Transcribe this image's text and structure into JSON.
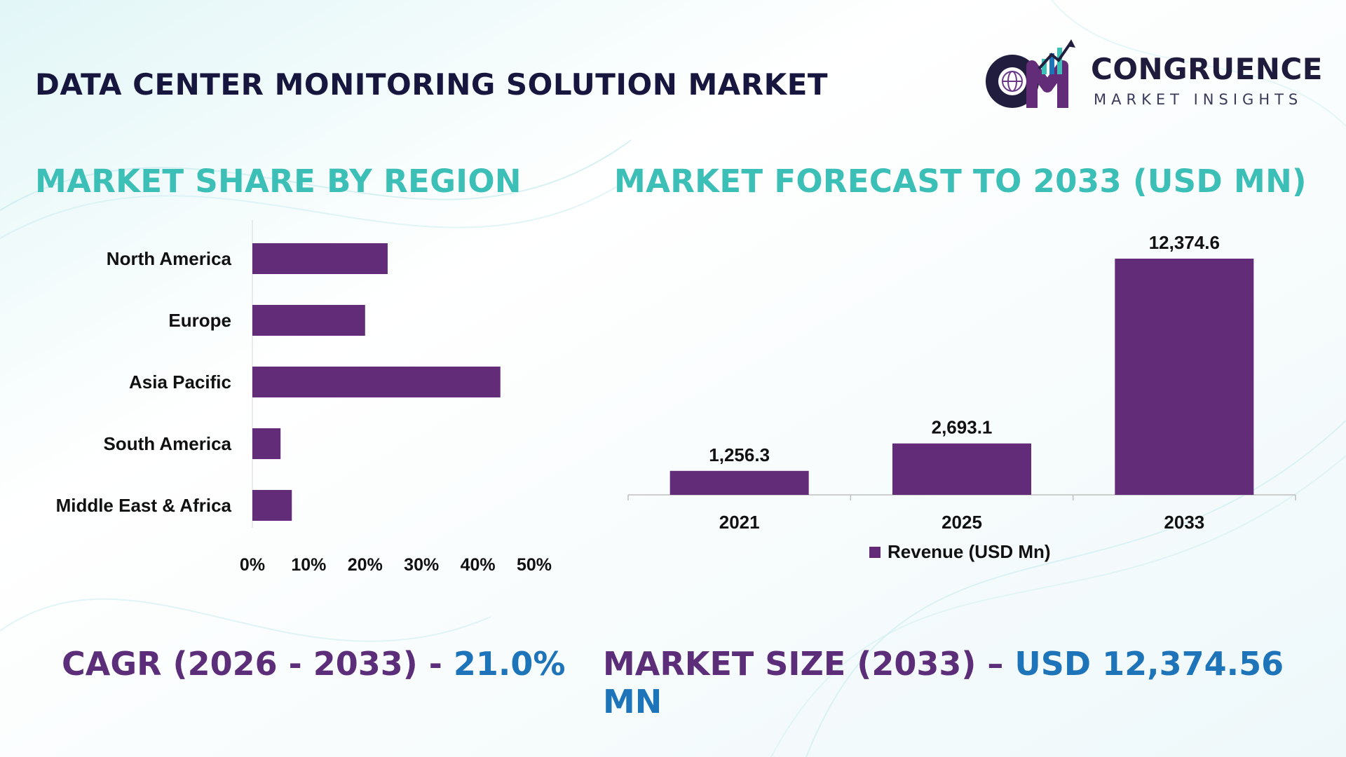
{
  "header": {
    "title": "DATA CENTER MONITORING SOLUTION MARKET"
  },
  "logo": {
    "letters": "CM",
    "name": "CONGRUENCE",
    "tagline": "MARKET INSIGHTS",
    "icon": "globe-bar-chart-icon"
  },
  "sections": {
    "region_title": "MARKET SHARE BY REGION",
    "forecast_title": "MARKET FORECAST TO 2033 (USD MN)"
  },
  "colors": {
    "bar": "#632c78",
    "teal": "#3bbfb6",
    "title_dark": "#16163f",
    "accent_blue": "#1d74b8",
    "footer_purple": "#5c2d79"
  },
  "chart_data": [
    {
      "type": "bar",
      "orientation": "horizontal",
      "title": "MARKET SHARE BY REGION",
      "categories": [
        "North America",
        "Europe",
        "Asia Pacific",
        "South America",
        "Middle East & Africa"
      ],
      "values": [
        24,
        20,
        44,
        5,
        7
      ],
      "unit": "%",
      "xlim": [
        0,
        50
      ],
      "xticks": [
        "0%",
        "10%",
        "20%",
        "30%",
        "40%",
        "50%"
      ],
      "grid": false
    },
    {
      "type": "bar",
      "orientation": "vertical",
      "title": "MARKET FORECAST TO 2033 (USD MN)",
      "categories": [
        "2021",
        "2025",
        "2033"
      ],
      "series": [
        {
          "name": "Revenue (USD Mn)",
          "values": [
            1256.3,
            2693.1,
            12374.6
          ]
        }
      ],
      "data_labels": [
        "1,256.3",
        "2,693.1",
        "12,374.6"
      ],
      "legend": "bottom",
      "grid": false
    }
  ],
  "footer": {
    "cagr_label": "CAGR (2026 - 2033) - ",
    "cagr_value": "21.0%",
    "size_label": "MARKET SIZE (2033) – ",
    "size_value": "USD 12,374.56 MN"
  }
}
